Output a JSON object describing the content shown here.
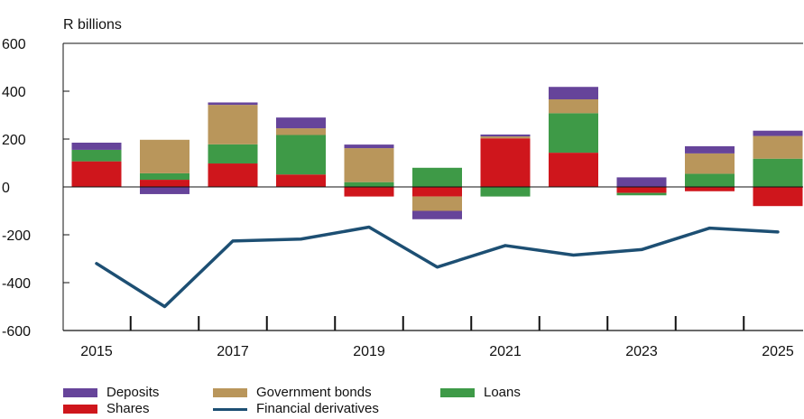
{
  "chart_data": {
    "type": "bar",
    "stacked": true,
    "unit_label": "R billions",
    "x": [
      2015,
      2016,
      2017,
      2018,
      2019,
      2020,
      2021,
      2022,
      2023,
      2024,
      2025
    ],
    "x_tick_labels": [
      "2015",
      "2017",
      "2019",
      "2021",
      "2023",
      "2025"
    ],
    "y_ticks": [
      "600",
      "400",
      "200",
      "0",
      "-200",
      "-400",
      "-600"
    ],
    "ylim": [
      -600,
      600
    ],
    "grid": false,
    "legend_position": "bottom",
    "series": [
      {
        "name": "Shares",
        "kind": "bar",
        "color": "#cf161c",
        "values": [
          107,
          30,
          98,
          52,
          -40,
          -40,
          203,
          143,
          -25,
          -18,
          -80
        ]
      },
      {
        "name": "Loans",
        "kind": "bar",
        "color": "#3e9a47",
        "values": [
          48,
          27,
          80,
          165,
          20,
          80,
          -40,
          165,
          -10,
          55,
          118
        ]
      },
      {
        "name": "Government bonds",
        "kind": "bar",
        "color": "#b9965b",
        "values": [
          0,
          140,
          165,
          28,
          142,
          -60,
          8,
          58,
          0,
          85,
          95
        ]
      },
      {
        "name": "Deposits",
        "kind": "bar",
        "color": "#66449a",
        "values": [
          30,
          -30,
          10,
          45,
          15,
          -35,
          8,
          52,
          40,
          30,
          22
        ]
      },
      {
        "name": "Financial derivatives",
        "kind": "line",
        "color": "#1d4f73",
        "values": [
          -320,
          -500,
          -226,
          -218,
          -168,
          -335,
          -245,
          -285,
          -262,
          -172,
          -188
        ]
      }
    ]
  },
  "legend": [
    {
      "label": "Deposits",
      "color": "#66449a",
      "kind": "bar"
    },
    {
      "label": "Government bonds",
      "color": "#b9965b",
      "kind": "bar"
    },
    {
      "label": "Loans",
      "color": "#3e9a47",
      "kind": "bar"
    },
    {
      "label": "Shares",
      "color": "#cf161c",
      "kind": "bar"
    },
    {
      "label": "Financial derivatives",
      "color": "#1d4f73",
      "kind": "line"
    }
  ]
}
